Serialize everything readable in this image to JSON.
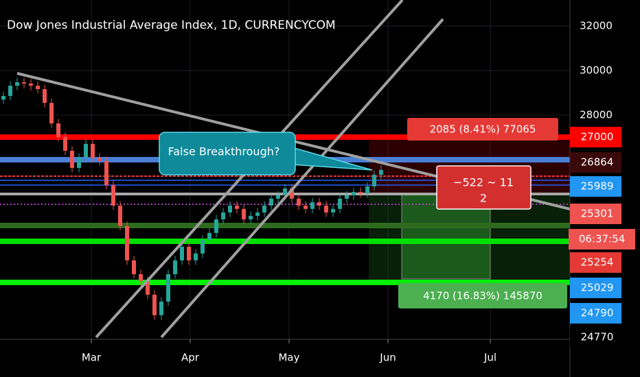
{
  "chart_data": {
    "type": "candlestick",
    "title": "Dow Jones Industrial Average Index, 1D, CURRENCYCOM",
    "open": [
      28700,
      28860,
      29320,
      29480,
      29420,
      29320,
      29170,
      28550,
      27630,
      27020,
      26400,
      25630,
      26090,
      26710,
      26090,
      25940,
      24860,
      23940,
      23020,
      21480,
      20860,
      20550,
      19940,
      19020,
      19630,
      20860,
      21480,
      22090,
      21480,
      21790,
      22400,
      22710,
      23320,
      23630,
      23940,
      23790,
      23320,
      23480,
      23630,
      23940,
      24250,
      24400,
      24710,
      24250,
      23940,
      23790,
      24090,
      23940,
      23630,
      23790,
      24250,
      24400,
      24550,
      24490,
      24800,
      25320
    ],
    "high": [
      29060,
      29520,
      29680,
      29680,
      29620,
      29520,
      29370,
      28750,
      27830,
      27220,
      26600,
      26290,
      26910,
      26910,
      26290,
      26140,
      25060,
      24140,
      23220,
      21680,
      21060,
      20750,
      20140,
      19830,
      21060,
      21680,
      22290,
      22290,
      21990,
      22600,
      22910,
      23520,
      23830,
      24140,
      24140,
      23990,
      23680,
      23830,
      24140,
      24450,
      24600,
      24910,
      24910,
      24450,
      24140,
      24290,
      24290,
      24140,
      23990,
      24450,
      24600,
      24750,
      24750,
      25000,
      25520,
      25740
    ],
    "low": [
      28500,
      28660,
      29120,
      29220,
      29120,
      28970,
      28350,
      27430,
      26820,
      26200,
      25430,
      25430,
      25890,
      25890,
      25740,
      24660,
      23740,
      22820,
      21280,
      20660,
      20350,
      19740,
      18820,
      18820,
      19430,
      20660,
      21280,
      21280,
      21280,
      21590,
      22200,
      22510,
      23120,
      23430,
      23590,
      23120,
      23120,
      23280,
      23430,
      23740,
      24050,
      24200,
      24050,
      23740,
      23590,
      23590,
      23740,
      23430,
      23430,
      23590,
      24050,
      24200,
      24290,
      24290,
      24600,
      25120
    ],
    "close": [
      28860,
      29320,
      29480,
      29420,
      29320,
      29170,
      28550,
      27630,
      27020,
      26400,
      25630,
      26090,
      26710,
      26090,
      25940,
      24860,
      23940,
      23020,
      21480,
      20860,
      20550,
      19940,
      19020,
      19630,
      20860,
      21480,
      22090,
      21480,
      21790,
      22400,
      22710,
      23320,
      23630,
      23940,
      23790,
      23320,
      23480,
      23630,
      23940,
      24250,
      24400,
      24710,
      24250,
      23940,
      23790,
      24090,
      23940,
      23630,
      23790,
      24250,
      24400,
      24550,
      24490,
      24800,
      25320,
      25540
    ],
    "up_color": "#26a69a",
    "down_color": "#ef5350",
    "xlim": [
      -0.5,
      82.5
    ],
    "xticks": [
      {
        "value": 12.8,
        "label": "Mar"
      },
      {
        "value": 27.2,
        "label": "Apr"
      },
      {
        "value": 41.6,
        "label": "May"
      },
      {
        "value": 56,
        "label": "Jun"
      },
      {
        "value": 70.9,
        "label": "Jul"
      }
    ],
    "ylim": [
      18090,
      33170
    ],
    "yticks": [
      28000,
      30000,
      32000
    ],
    "grid": true,
    "annotation": "False Breakthrough?",
    "price_tags": [
      "27000",
      "26864",
      "25989",
      "25301",
      "06:37:54",
      "25254",
      "25029",
      "24790",
      "24770"
    ],
    "position_labels": [
      "2085 (8.41%) 77065",
      "−522 ~ 11",
      "2",
      "4170 (16.83%) 145870"
    ]
  }
}
